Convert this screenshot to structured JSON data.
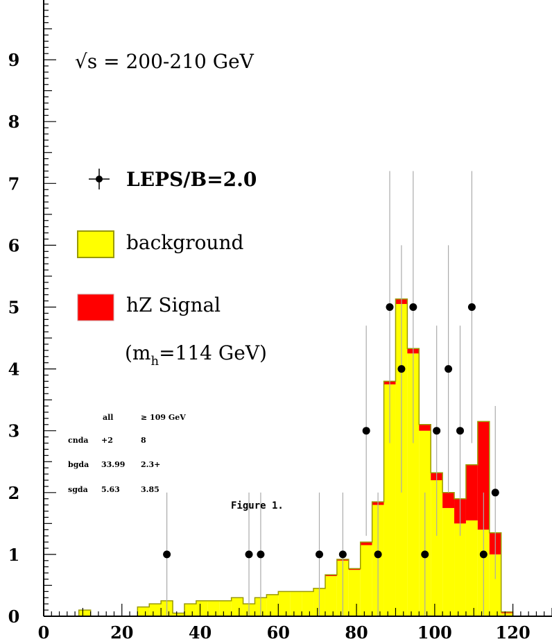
{
  "chart_data": {
    "type": "histogram",
    "title": "",
    "xlabel": "",
    "ylabel": "",
    "xlim": [
      0,
      130
    ],
    "ylim": [
      0,
      10
    ],
    "x_ticks": [
      0,
      20,
      40,
      60,
      80,
      100,
      120
    ],
    "y_ticks": [
      0,
      1,
      2,
      3,
      4,
      5,
      6,
      7,
      8,
      9
    ],
    "bin_width": 3,
    "bin_edges_start": 0,
    "background": [
      0,
      0,
      0,
      0.1,
      0,
      0,
      0,
      0,
      0.15,
      0.2,
      0.25,
      0.05,
      0.2,
      0.25,
      0.25,
      0.25,
      0.3,
      0.2,
      0.3,
      0.35,
      0.4,
      0.4,
      0.4,
      0.45,
      0.65,
      0.9,
      0.75,
      1.15,
      1.8,
      3.75,
      5.05,
      4.25,
      3.0,
      2.2,
      1.75,
      1.5,
      1.55,
      1.4,
      1.0,
      0.05,
      0,
      0,
      0
    ],
    "signal": [
      0,
      0,
      0,
      0,
      0,
      0,
      0,
      0,
      0,
      0,
      0,
      0,
      0,
      0,
      0,
      0,
      0,
      0,
      0,
      0,
      0,
      0,
      0,
      0,
      0.02,
      0.02,
      0.02,
      0.05,
      0.05,
      0.05,
      0.08,
      0.08,
      0.1,
      0.12,
      0.25,
      0.4,
      0.9,
      1.75,
      0.35,
      0.02,
      0,
      0,
      0
    ],
    "data_points": [
      {
        "x": 31.5,
        "y": 1,
        "err": 1.0
      },
      {
        "x": 52.5,
        "y": 1,
        "err": 1.0
      },
      {
        "x": 55.5,
        "y": 1,
        "err": 1.0
      },
      {
        "x": 70.5,
        "y": 1,
        "err": 1.0
      },
      {
        "x": 76.5,
        "y": 1,
        "err": 1.0
      },
      {
        "x": 82.5,
        "y": 3,
        "err": 1.7
      },
      {
        "x": 85.5,
        "y": 1,
        "err": 1.0
      },
      {
        "x": 88.5,
        "y": 5,
        "err": 2.2
      },
      {
        "x": 91.5,
        "y": 4,
        "err": 2.0
      },
      {
        "x": 94.5,
        "y": 5,
        "err": 2.2
      },
      {
        "x": 97.5,
        "y": 1,
        "err": 1.0
      },
      {
        "x": 100.5,
        "y": 3,
        "err": 1.7
      },
      {
        "x": 103.5,
        "y": 4,
        "err": 2.0
      },
      {
        "x": 106.5,
        "y": 3,
        "err": 1.7
      },
      {
        "x": 109.5,
        "y": 5,
        "err": 2.2
      },
      {
        "x": 112.5,
        "y": 1,
        "err": 1.0
      },
      {
        "x": 115.5,
        "y": 2,
        "err": 1.4
      }
    ],
    "legend": [
      {
        "label": "LEPS/B=2.0",
        "kind": "points"
      },
      {
        "label": "background",
        "kind": "fill",
        "color": "#ffff00"
      },
      {
        "label": "hZ Signal",
        "kind": "fill",
        "color": "#ff0000"
      }
    ],
    "annotations": {
      "energy": "√s = 200-210 GeV",
      "mass_note": "(m",
      "mass_sub": "h",
      "mass_tail": "=114 GeV)",
      "caption": "Figure 1.",
      "stats_header": [
        "all",
        "≥ 109 GeV"
      ],
      "stats_rows": [
        [
          "cnda",
          "+2",
          "8"
        ],
        [
          "bgda",
          "33.99",
          "2.3+"
        ],
        [
          "sgda",
          "5.63",
          "3.85"
        ]
      ]
    },
    "colors": {
      "background_fill": "#ffff00",
      "background_edge": "#999900",
      "signal_fill": "#ff0000",
      "data": "#000000",
      "error_bar": "#aaaaaa"
    }
  }
}
